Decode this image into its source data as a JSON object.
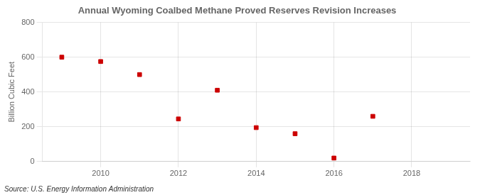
{
  "chart_data": {
    "type": "scatter",
    "title": "Annual Wyoming Coalbed Methane Proved Reserves Revision Increases",
    "ylabel": "Billion Cubic Feet",
    "annotations": [
      "Source: U.S. Energy Information Administration"
    ],
    "x": [
      2009,
      2010,
      2011,
      2012,
      2013,
      2014,
      2015,
      2016,
      2017
    ],
    "values": [
      600,
      575,
      500,
      245,
      410,
      195,
      160,
      20,
      260
    ],
    "color": "#cc0000",
    "marker": "square",
    "xlim": [
      2008.5,
      2019.5
    ],
    "xticks": [
      2010,
      2012,
      2014,
      2016,
      2018
    ],
    "ylim": [
      0,
      800
    ],
    "yticks": [
      0,
      200,
      400,
      600,
      800
    ],
    "grid": true
  }
}
